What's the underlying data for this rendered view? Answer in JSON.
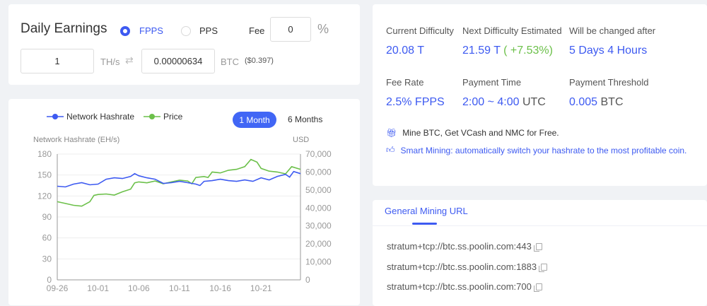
{
  "earnings": {
    "title": "Daily Earnings",
    "options": [
      "FPPS",
      "PPS"
    ],
    "selected": "FPPS",
    "fee_label": "Fee",
    "fee_value": "0",
    "fee_unit": "%",
    "hashrate_value": "1",
    "hashrate_unit": "TH/s",
    "swap_icon": "swap-arrows-icon",
    "btc_value": "0.00000634",
    "btc_unit": "BTC",
    "usd_value": "($0.397)"
  },
  "colors": {
    "accent": "#3d5af1",
    "hashrate": "#3d5af1",
    "price": "#6cc04a"
  },
  "stats": [
    {
      "label": "Current Difficulty",
      "value": "20.08 T"
    },
    {
      "label": "Next Difficulty Estimated",
      "value": "21.59 T",
      "change": "( +7.53%)"
    },
    {
      "label": "Will be changed after",
      "value": "5 Days 4 Hours"
    },
    {
      "label": "Fee Rate",
      "value": "2.5% FPPS"
    },
    {
      "label": "Payment Time",
      "value": "2:00 ~ 4:00",
      "unit": "UTC"
    },
    {
      "label": "Payment Threshold",
      "value": "0.005",
      "unit": "BTC"
    }
  ],
  "promos": [
    {
      "icon": "gift-icon",
      "text": "Mine BTC, Get VCash and NMC for Free."
    },
    {
      "icon": "thumbs-up-icon",
      "text": "Smart Mining: automatically switch your hashrate to the most profitable coin."
    }
  ],
  "mining": {
    "tab": "General Mining URL",
    "urls": [
      "stratum+tcp://btc.ss.poolin.com:443",
      "stratum+tcp://btc.ss.poolin.com:1883",
      "stratum+tcp://btc.ss.poolin.com:700"
    ]
  },
  "range_buttons": [
    "1 Month",
    "6 Months"
  ],
  "range_selected": "1 Month",
  "chart_data": {
    "type": "line",
    "legend": [
      "Network Hashrate",
      "Price"
    ],
    "legend_placement": "top-left",
    "ylabel_left": "Network Hashrate (EH/s)",
    "ylabel_right": "USD",
    "ylim_left": [
      0,
      180
    ],
    "ylim_right": [
      0,
      70000
    ],
    "yticks_left": [
      "0",
      "30",
      "60",
      "90",
      "120",
      "150",
      "180"
    ],
    "yticks_right": [
      "0",
      "10,000",
      "20,000",
      "30,000",
      "40,000",
      "50,000",
      "60,000",
      "70,000"
    ],
    "xticks": [
      "09-26",
      "10-01",
      "10-06",
      "10-11",
      "10-16",
      "10-21"
    ],
    "xlim": [
      "09-26 00:00",
      "10-25 20:00"
    ],
    "grid": true,
    "series": [
      {
        "name": "Network Hashrate",
        "axis": "left",
        "points": [
          [
            "09-26 00:00",
            134
          ],
          [
            "09-27 00:00",
            133
          ],
          [
            "09-28 00:00",
            137
          ],
          [
            "09-29 00:00",
            139
          ],
          [
            "09-30 00:00",
            136
          ],
          [
            "10-01 00:00",
            137
          ],
          [
            "10-02 00:00",
            144
          ],
          [
            "10-03 00:00",
            146
          ],
          [
            "10-04 00:00",
            145
          ],
          [
            "10-05 00:00",
            148
          ],
          [
            "10-05 12:00",
            152
          ],
          [
            "10-06 00:00",
            149
          ],
          [
            "10-07 00:00",
            146
          ],
          [
            "10-08 00:00",
            144
          ],
          [
            "10-09 00:00",
            138
          ],
          [
            "10-10 00:00",
            139
          ],
          [
            "10-11 00:00",
            141
          ],
          [
            "10-12 00:00",
            139
          ],
          [
            "10-13 00:00",
            137
          ],
          [
            "10-13 12:00",
            135
          ],
          [
            "10-14 00:00",
            141
          ],
          [
            "10-15 00:00",
            142
          ],
          [
            "10-16 00:00",
            144
          ],
          [
            "10-17 00:00",
            142
          ],
          [
            "10-18 00:00",
            141
          ],
          [
            "10-19 00:00",
            143
          ],
          [
            "10-20 00:00",
            141
          ],
          [
            "10-21 00:00",
            146
          ],
          [
            "10-22 00:00",
            143
          ],
          [
            "10-23 00:00",
            148
          ],
          [
            "10-24 00:00",
            151
          ],
          [
            "10-24 12:00",
            147
          ],
          [
            "10-25 00:00",
            155
          ],
          [
            "10-25 20:00",
            152
          ]
        ]
      },
      {
        "name": "Price",
        "axis": "right",
        "points": [
          [
            "09-26 00:00",
            43500
          ],
          [
            "09-27 00:00",
            42500
          ],
          [
            "09-28 00:00",
            41500
          ],
          [
            "09-29 00:00",
            41000
          ],
          [
            "09-30 00:00",
            43500
          ],
          [
            "09-30 12:00",
            47000
          ],
          [
            "10-01 00:00",
            47500
          ],
          [
            "10-02 00:00",
            47800
          ],
          [
            "10-03 00:00",
            47200
          ],
          [
            "10-04 00:00",
            49000
          ],
          [
            "10-05 00:00",
            50500
          ],
          [
            "10-05 12:00",
            54000
          ],
          [
            "10-06 00:00",
            54500
          ],
          [
            "10-07 00:00",
            54000
          ],
          [
            "10-08 00:00",
            55000
          ],
          [
            "10-09 00:00",
            53500
          ],
          [
            "10-10 00:00",
            54500
          ],
          [
            "10-11 00:00",
            55500
          ],
          [
            "10-12 00:00",
            55000
          ],
          [
            "10-12 12:00",
            53500
          ],
          [
            "10-13 00:00",
            57000
          ],
          [
            "10-14 00:00",
            57500
          ],
          [
            "10-14 12:00",
            57000
          ],
          [
            "10-15 00:00",
            60000
          ],
          [
            "10-16 00:00",
            59500
          ],
          [
            "10-17 00:00",
            61000
          ],
          [
            "10-18 00:00",
            61500
          ],
          [
            "10-19 00:00",
            63000
          ],
          [
            "10-19 18:00",
            67000
          ],
          [
            "10-20 12:00",
            65500
          ],
          [
            "10-21 00:00",
            62000
          ],
          [
            "10-22 00:00",
            60500
          ],
          [
            "10-23 00:00",
            60000
          ],
          [
            "10-24 00:00",
            59000
          ],
          [
            "10-24 18:00",
            63000
          ],
          [
            "10-25 20:00",
            61500
          ]
        ]
      }
    ]
  }
}
